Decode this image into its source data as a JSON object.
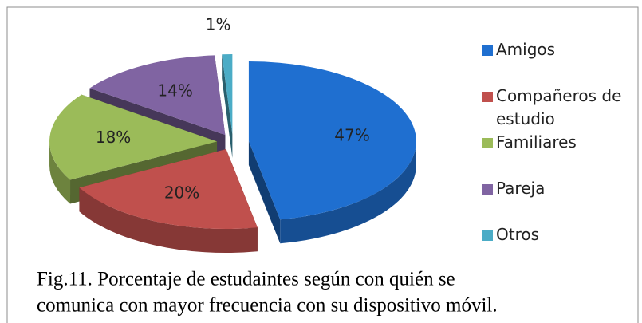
{
  "chart_data": {
    "type": "pie3d",
    "categories": [
      "Amigos",
      "Compañeros de estudio",
      "Familiares",
      "Pareja",
      "Otros"
    ],
    "values": [
      47,
      20,
      18,
      14,
      1
    ],
    "value_labels": [
      "47%",
      "20%",
      "18%",
      "14%",
      "1%"
    ],
    "colors": [
      "#1f6fd0",
      "#c0504d",
      "#9bbb59",
      "#8064a2",
      "#4bacc6"
    ],
    "legend": "right",
    "caption": [
      "Fig.11.  Porcentaje de estudaintes según con quién se",
      "comunica con mayor frecuencia con su dispositivo móvil."
    ]
  }
}
